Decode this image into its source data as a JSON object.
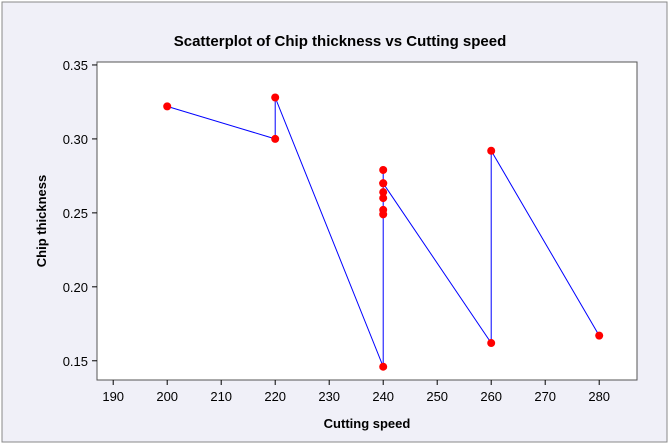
{
  "chart_data": {
    "type": "scatter",
    "title": "Scatterplot of Chip thickness vs Cutting speed",
    "xlabel": "Cutting speed",
    "ylabel": "Chip thickness",
    "xlim": [
      187,
      287
    ],
    "ylim": [
      0.137,
      0.352
    ],
    "x_ticks": [
      190,
      200,
      210,
      220,
      230,
      240,
      250,
      260,
      270,
      280
    ],
    "y_ticks": [
      0.15,
      0.2,
      0.25,
      0.3,
      0.35
    ],
    "x_tick_labels": [
      "190",
      "200",
      "210",
      "220",
      "230",
      "240",
      "250",
      "260",
      "270",
      "280"
    ],
    "y_tick_labels": [
      "0.15",
      "0.20",
      "0.25",
      "0.30",
      "0.35"
    ],
    "connect_points": true,
    "grid": false,
    "colors": {
      "point": "#ff0000",
      "line": "#0000ff",
      "frame_bg": "#f0f0f8",
      "frame_border": "#888888",
      "plot_bg": "#ffffff"
    },
    "points": [
      {
        "x": 200,
        "y": 0.322
      },
      {
        "x": 220,
        "y": 0.3
      },
      {
        "x": 220,
        "y": 0.328
      },
      {
        "x": 240,
        "y": 0.146
      },
      {
        "x": 240,
        "y": 0.249
      },
      {
        "x": 240,
        "y": 0.252
      },
      {
        "x": 240,
        "y": 0.26
      },
      {
        "x": 240,
        "y": 0.264
      },
      {
        "x": 240,
        "y": 0.27
      },
      {
        "x": 240,
        "y": 0.279
      },
      {
        "x": 240,
        "y": 0.27
      },
      {
        "x": 260,
        "y": 0.162
      },
      {
        "x": 260,
        "y": 0.292
      },
      {
        "x": 280,
        "y": 0.167
      }
    ]
  }
}
